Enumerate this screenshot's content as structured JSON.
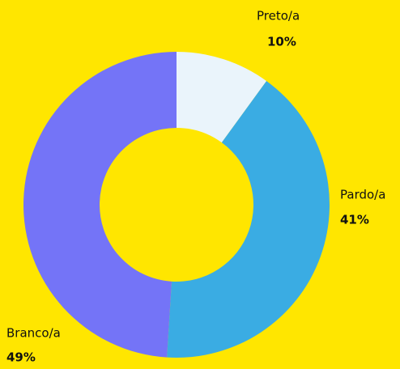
{
  "chart_data": {
    "type": "donut",
    "categories": [
      "Preto/a",
      "Pardo/a",
      "Branco/a"
    ],
    "values": [
      10,
      41,
      49
    ],
    "value_labels": [
      "10%",
      "41%",
      "49%"
    ],
    "colors": [
      "#eaf4fb",
      "#3aace3",
      "#7474f7"
    ]
  }
}
